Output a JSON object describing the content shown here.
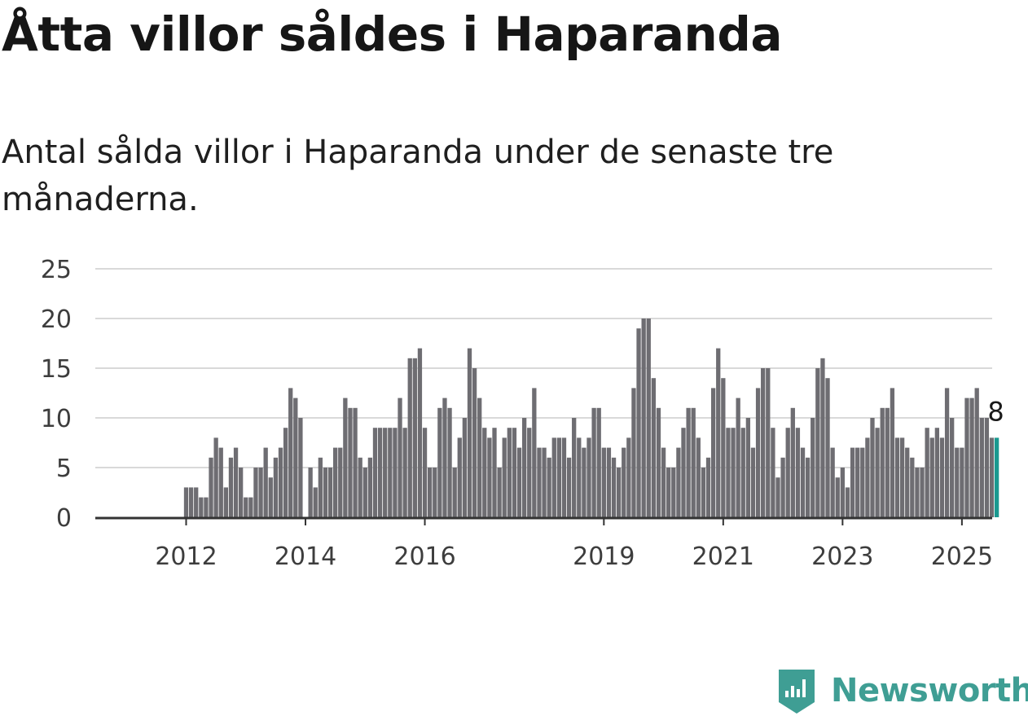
{
  "title": "Åtta villor såldes i Haparanda",
  "subtitle": "Antal sålda villor i Haparanda under de senaste tre månaderna.",
  "brand": {
    "name": "Newsworthy",
    "color": "#3f9e94"
  },
  "chart_data": {
    "type": "bar",
    "title": "Åtta villor såldes i Haparanda",
    "subtitle": "Antal sålda villor i Haparanda under de senaste tre månaderna.",
    "xlabel": "",
    "ylabel": "",
    "ylim": [
      0,
      25
    ],
    "y_ticks": [
      0,
      5,
      10,
      15,
      20,
      25
    ],
    "x_tick_labels": [
      "2012",
      "2014",
      "2016",
      "2019",
      "2021",
      "2023",
      "2025"
    ],
    "start_month": "2011-03",
    "grid": "horizontal",
    "bar_color": "#6e6d72",
    "highlight_color": "#1a9990",
    "highlight_label": "8",
    "values": [
      0,
      0,
      0,
      0,
      0,
      0,
      0,
      0,
      0,
      0,
      3,
      3,
      3,
      2,
      2,
      6,
      8,
      7,
      3,
      6,
      7,
      5,
      2,
      2,
      5,
      5,
      7,
      4,
      6,
      7,
      9,
      13,
      12,
      10,
      0,
      5,
      3,
      6,
      5,
      5,
      7,
      7,
      12,
      11,
      11,
      6,
      5,
      6,
      9,
      9,
      9,
      9,
      9,
      12,
      9,
      16,
      16,
      17,
      9,
      5,
      5,
      11,
      12,
      11,
      5,
      8,
      10,
      17,
      15,
      12,
      9,
      8,
      9,
      5,
      8,
      9,
      9,
      7,
      10,
      9,
      13,
      7,
      7,
      6,
      8,
      8,
      8,
      6,
      10,
      8,
      7,
      8,
      11,
      11,
      7,
      7,
      6,
      5,
      7,
      8,
      13,
      19,
      20,
      20,
      14,
      11,
      7,
      5,
      5,
      7,
      9,
      11,
      11,
      8,
      5,
      6,
      13,
      17,
      14,
      9,
      9,
      12,
      9,
      10,
      7,
      13,
      15,
      15,
      9,
      4,
      6,
      9,
      11,
      9,
      7,
      6,
      10,
      15,
      16,
      14,
      7,
      4,
      5,
      3,
      7,
      7,
      7,
      8,
      10,
      9,
      11,
      11,
      13,
      8,
      8,
      7,
      6,
      5,
      5,
      9,
      8,
      9,
      8,
      13,
      10,
      7,
      7,
      12,
      12,
      13,
      10,
      10,
      8,
      8
    ]
  }
}
